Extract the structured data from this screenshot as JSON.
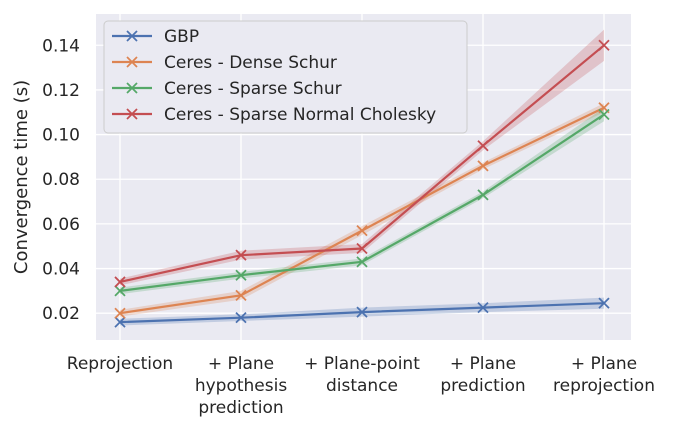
{
  "chart_data": {
    "type": "line",
    "title": "",
    "xlabel": "",
    "ylabel": "Convergence time (s)",
    "categories": [
      [
        "Reprojection"
      ],
      [
        "+ Plane",
        "hypothesis",
        "prediction"
      ],
      [
        "+ Plane-point",
        "distance"
      ],
      [
        "+ Plane",
        "prediction"
      ],
      [
        "+ Plane",
        "reprojection"
      ]
    ],
    "ylim": [
      0.008,
      0.154
    ],
    "yticks": [
      0.02,
      0.04,
      0.06,
      0.08,
      0.1,
      0.12,
      0.14
    ],
    "ytick_labels": [
      "0.02",
      "0.04",
      "0.06",
      "0.08",
      "0.10",
      "0.12",
      "0.14"
    ],
    "grid": true,
    "legend_position": "top-left",
    "series": [
      {
        "name": "GBP",
        "color": "#4c72b0",
        "values": [
          0.016,
          0.018,
          0.0205,
          0.0225,
          0.0245
        ],
        "band": [
          0.0015,
          0.0015,
          0.002,
          0.002,
          0.0025
        ]
      },
      {
        "name": "Ceres - Dense Schur",
        "color": "#dd8452",
        "values": [
          0.02,
          0.028,
          0.057,
          0.086,
          0.112
        ],
        "band": [
          0.0015,
          0.002,
          0.002,
          0.0015,
          0.002
        ]
      },
      {
        "name": "Ceres - Sparse Schur",
        "color": "#55a868",
        "values": [
          0.03,
          0.037,
          0.043,
          0.073,
          0.109
        ],
        "band": [
          0.0015,
          0.0015,
          0.0015,
          0.0015,
          0.003
        ]
      },
      {
        "name": "Ceres - Sparse Normal Cholesky",
        "color": "#c44e52",
        "values": [
          0.034,
          0.046,
          0.049,
          0.095,
          0.14
        ],
        "band": [
          0.0015,
          0.002,
          0.002,
          0.002,
          0.007
        ]
      }
    ]
  }
}
